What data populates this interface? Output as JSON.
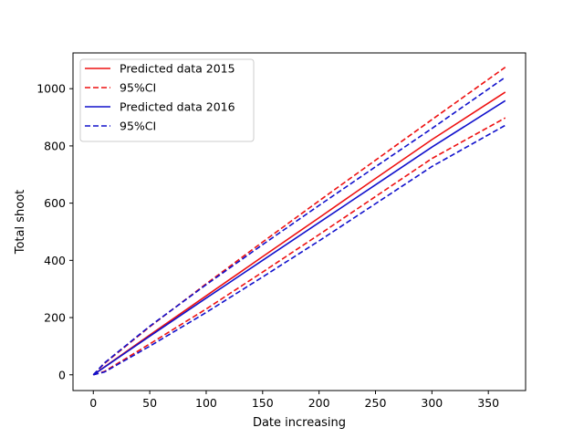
{
  "chart_data": {
    "type": "line",
    "title": "",
    "xlabel": "Date increasing",
    "ylabel": "Total shoot",
    "xlim": [
      -18,
      383
    ],
    "ylim": [
      -55,
      1125
    ],
    "xticks": [
      0,
      50,
      100,
      150,
      200,
      250,
      300,
      350
    ],
    "yticks": [
      0,
      200,
      400,
      600,
      800,
      1000
    ],
    "grid": false,
    "legend_position": "upper-left",
    "series": [
      {
        "name": "Predicted data 2015",
        "color": "#ee1111",
        "dash": "solid",
        "x": [
          0,
          50,
          100,
          150,
          200,
          250,
          300,
          365
        ],
        "values": [
          0,
          139,
          276,
          413,
          549,
          686,
          822,
          988
        ]
      },
      {
        "name": "95%CI",
        "color": "#ee1111",
        "dash": "dashed",
        "x": [
          0,
          10,
          50,
          100,
          150,
          200,
          250,
          300,
          365
        ],
        "values": [
          0,
          40,
          168,
          318,
          464,
          608,
          750,
          892,
          1075
        ]
      },
      {
        "name": "",
        "color": "#ee1111",
        "dash": "dashed",
        "x": [
          0,
          10,
          50,
          100,
          150,
          200,
          250,
          300,
          365
        ],
        "values": [
          0,
          12,
          108,
          230,
          359,
          490,
          623,
          756,
          898
        ]
      },
      {
        "name": "Predicted data 2016",
        "color": "#1111cc",
        "dash": "solid",
        "x": [
          0,
          50,
          100,
          150,
          200,
          250,
          300,
          365
        ],
        "values": [
          0,
          135,
          268,
          400,
          532,
          664,
          796,
          958
        ]
      },
      {
        "name": "95%CI",
        "color": "#1111cc",
        "dash": "dashed",
        "x": [
          0,
          10,
          50,
          100,
          150,
          200,
          250,
          300,
          365
        ],
        "values": [
          0,
          42,
          170,
          315,
          455,
          592,
          727,
          861,
          1040
        ]
      },
      {
        "name": "",
        "color": "#1111cc",
        "dash": "dashed",
        "x": [
          0,
          10,
          50,
          100,
          150,
          200,
          250,
          300,
          365
        ],
        "values": [
          0,
          10,
          100,
          218,
          342,
          468,
          598,
          728,
          872
        ]
      }
    ],
    "legend": [
      {
        "label": "Predicted data 2015",
        "color": "#ee1111",
        "dash": "solid"
      },
      {
        "label": "95%CI",
        "color": "#ee1111",
        "dash": "dashed"
      },
      {
        "label": "Predicted data 2016",
        "color": "#1111cc",
        "dash": "solid"
      },
      {
        "label": "95%CI",
        "color": "#1111cc",
        "dash": "dashed"
      }
    ]
  }
}
